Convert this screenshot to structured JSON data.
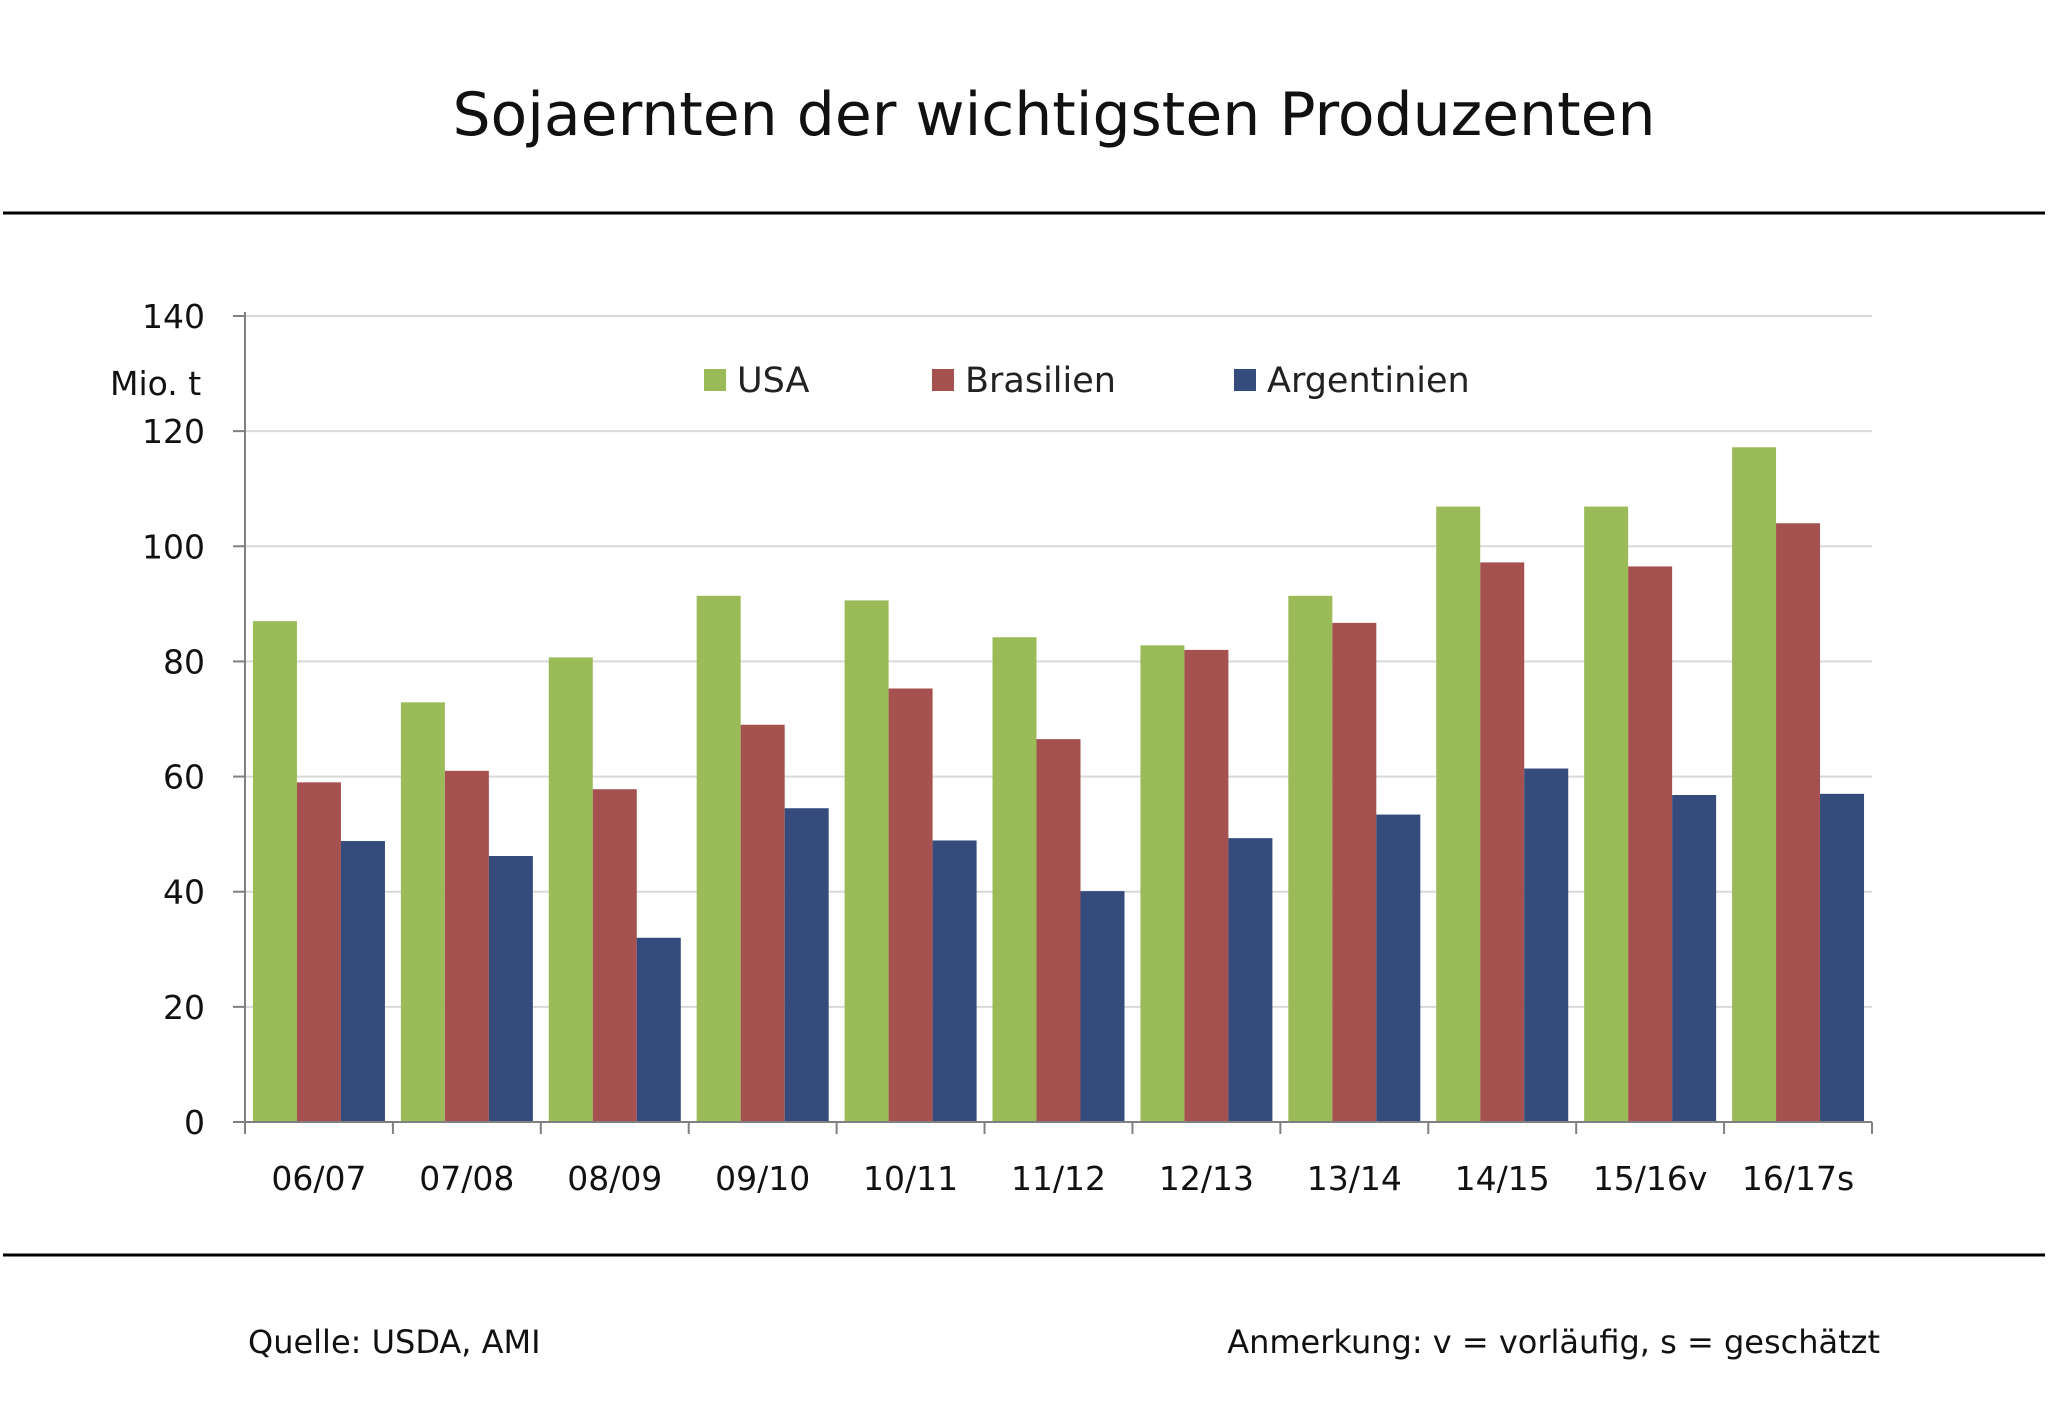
{
  "chart_data": {
    "type": "bar",
    "title": "Sojaernten der wichtigsten Produzenten",
    "ylabel": "Mio. t",
    "xlabel": "",
    "ylim": [
      0,
      140
    ],
    "yticks": [
      0,
      20,
      40,
      60,
      80,
      100,
      120,
      140
    ],
    "grid": true,
    "legend_position": "top-center",
    "categories": [
      "06/07",
      "07/08",
      "08/09",
      "09/10",
      "10/11",
      "11/12",
      "12/13",
      "13/14",
      "14/15",
      "15/16v",
      "16/17s"
    ],
    "series": [
      {
        "name": "USA",
        "color": "#9bbb59",
        "values": [
          87.0,
          72.9,
          80.7,
          91.4,
          90.6,
          84.2,
          82.8,
          91.4,
          106.9,
          106.9,
          117.2
        ]
      },
      {
        "name": "Brasilien",
        "color": "#a5514f",
        "values": [
          59.0,
          61.0,
          57.8,
          69.0,
          75.3,
          66.5,
          82.0,
          86.7,
          97.2,
          96.5,
          104.0
        ]
      },
      {
        "name": "Argentinien",
        "color": "#344b7c",
        "values": [
          48.8,
          46.2,
          32.0,
          54.5,
          48.9,
          40.1,
          49.3,
          53.4,
          61.4,
          56.8,
          57.0
        ]
      }
    ]
  },
  "footer": {
    "source": "Quelle: USDA, AMI",
    "note": "Anmerkung: v = vorläufig, s = geschätzt"
  }
}
